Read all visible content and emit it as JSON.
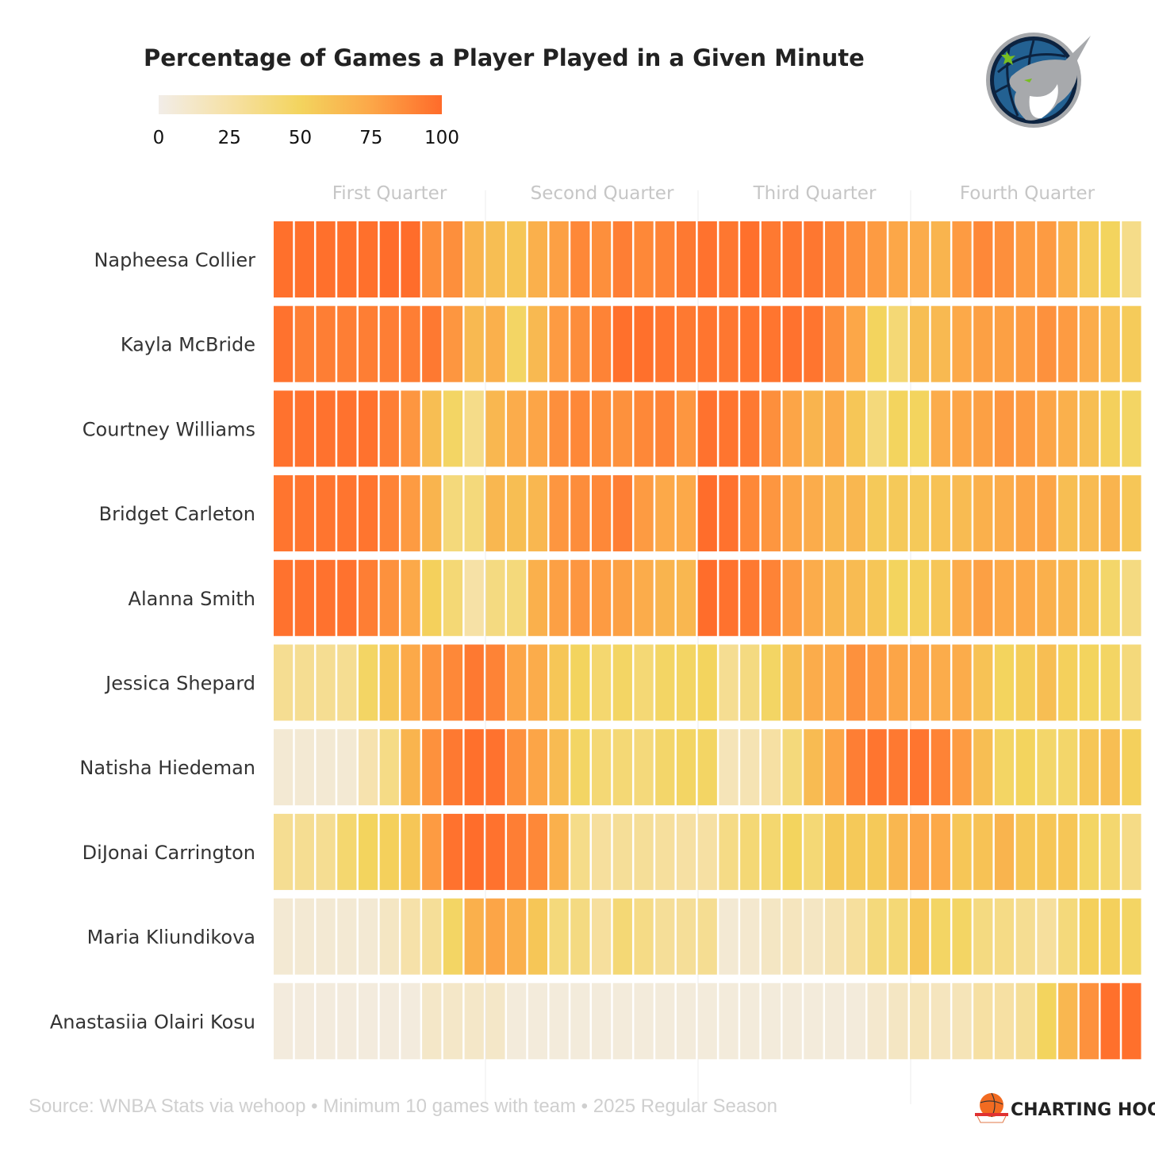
{
  "chart_data": {
    "type": "heatmap",
    "title": "Percentage of Games a Player Played in a Given Minute",
    "legend": {
      "ticks": [
        0,
        25,
        50,
        75,
        100
      ],
      "position": "top-left"
    },
    "color_scale": [
      {
        "value": 0,
        "color": "#f2ede8"
      },
      {
        "value": 25,
        "color": "#f6e1a6"
      },
      {
        "value": 50,
        "color": "#f3d45e"
      },
      {
        "value": 75,
        "color": "#fca748"
      },
      {
        "value": 100,
        "color": "#ff6b2a"
      }
    ],
    "quarters": [
      "First Quarter",
      "Second Quarter",
      "Third Quarter",
      "Fourth Quarter"
    ],
    "minutes": 41,
    "rows": [
      {
        "player": "Napheesa Collier",
        "values": [
          98,
          98,
          98,
          98,
          98,
          99,
          99,
          85,
          85,
          68,
          62,
          58,
          70,
          78,
          88,
          85,
          92,
          88,
          90,
          94,
          97,
          95,
          98,
          94,
          95,
          95,
          90,
          85,
          80,
          75,
          72,
          68,
          80,
          88,
          85,
          80,
          80,
          70,
          55,
          50,
          35
        ]
      },
      {
        "player": "Kayla McBride",
        "values": [
          97,
          92,
          92,
          92,
          92,
          92,
          92,
          94,
          82,
          65,
          70,
          48,
          65,
          80,
          86,
          90,
          98,
          98,
          96,
          94,
          96,
          95,
          96,
          96,
          97,
          96,
          85,
          75,
          50,
          42,
          62,
          65,
          74,
          78,
          78,
          80,
          84,
          80,
          72,
          60,
          55
        ]
      },
      {
        "player": "Courtney Williams",
        "values": [
          97,
          97,
          97,
          97,
          97,
          92,
          82,
          62,
          48,
          35,
          66,
          72,
          76,
          85,
          88,
          86,
          84,
          88,
          90,
          82,
          97,
          96,
          94,
          85,
          76,
          68,
          72,
          58,
          40,
          50,
          50,
          72,
          76,
          78,
          82,
          80,
          76,
          70,
          62,
          52,
          48
        ]
      },
      {
        "player": "Bridget Carleton",
        "values": [
          96,
          96,
          96,
          96,
          96,
          90,
          80,
          68,
          40,
          40,
          66,
          62,
          66,
          82,
          86,
          88,
          92,
          80,
          74,
          74,
          99,
          97,
          88,
          82,
          76,
          72,
          66,
          66,
          56,
          56,
          56,
          60,
          64,
          70,
          72,
          76,
          76,
          62,
          64,
          68,
          58
        ]
      },
      {
        "player": "Alanna Smith",
        "values": [
          97,
          97,
          97,
          97,
          92,
          84,
          74,
          52,
          42,
          25,
          38,
          40,
          70,
          78,
          82,
          80,
          78,
          72,
          68,
          66,
          99,
          97,
          94,
          90,
          80,
          72,
          66,
          64,
          58,
          50,
          52,
          58,
          72,
          78,
          74,
          74,
          70,
          66,
          58,
          46,
          38
        ]
      },
      {
        "player": "Jessica Shepard",
        "values": [
          32,
          32,
          32,
          32,
          48,
          58,
          74,
          82,
          88,
          94,
          90,
          76,
          72,
          58,
          50,
          44,
          48,
          42,
          48,
          48,
          50,
          32,
          38,
          48,
          62,
          72,
          74,
          84,
          80,
          76,
          76,
          72,
          72,
          60,
          50,
          54,
          62,
          52,
          50,
          48,
          40
        ]
      },
      {
        "player": "Natisha Hiedeman",
        "values": [
          8,
          8,
          8,
          8,
          22,
          36,
          68,
          84,
          94,
          98,
          97,
          84,
          76,
          64,
          48,
          42,
          42,
          40,
          46,
          48,
          48,
          18,
          20,
          26,
          40,
          64,
          76,
          92,
          96,
          94,
          96,
          90,
          80,
          62,
          48,
          50,
          46,
          46,
          58,
          62,
          52
        ]
      },
      {
        "player": "DiJonai Carrington",
        "values": [
          32,
          32,
          32,
          44,
          50,
          52,
          58,
          80,
          97,
          99,
          97,
          92,
          88,
          70,
          35,
          28,
          30,
          30,
          28,
          26,
          26,
          36,
          42,
          44,
          50,
          42,
          56,
          56,
          56,
          66,
          76,
          74,
          58,
          60,
          68,
          58,
          58,
          58,
          48,
          44,
          36
        ]
      },
      {
        "player": "Maria Kliundikova",
        "values": [
          8,
          8,
          8,
          8,
          8,
          14,
          24,
          30,
          48,
          70,
          76,
          70,
          58,
          40,
          38,
          28,
          42,
          36,
          30,
          30,
          32,
          8,
          10,
          14,
          16,
          14,
          20,
          28,
          40,
          42,
          58,
          48,
          48,
          38,
          36,
          32,
          28,
          40,
          52,
          52,
          48
        ]
      },
      {
        "player": "Anastasiia Olairi Kosu",
        "values": [
          4,
          4,
          4,
          4,
          4,
          4,
          4,
          12,
          12,
          12,
          12,
          5,
          5,
          5,
          5,
          5,
          5,
          5,
          5,
          5,
          5,
          5,
          5,
          5,
          5,
          5,
          5,
          5,
          10,
          14,
          18,
          16,
          18,
          26,
          26,
          30,
          50,
          66,
          84,
          98,
          98
        ]
      }
    ]
  },
  "footer": {
    "source": "Source: WNBA Stats via wehoop • Minimum 10 games with team • 2025 Regular Season",
    "brand": "CHARTING HOOPS"
  },
  "logo": {
    "team": "Minnesota Lynx"
  }
}
